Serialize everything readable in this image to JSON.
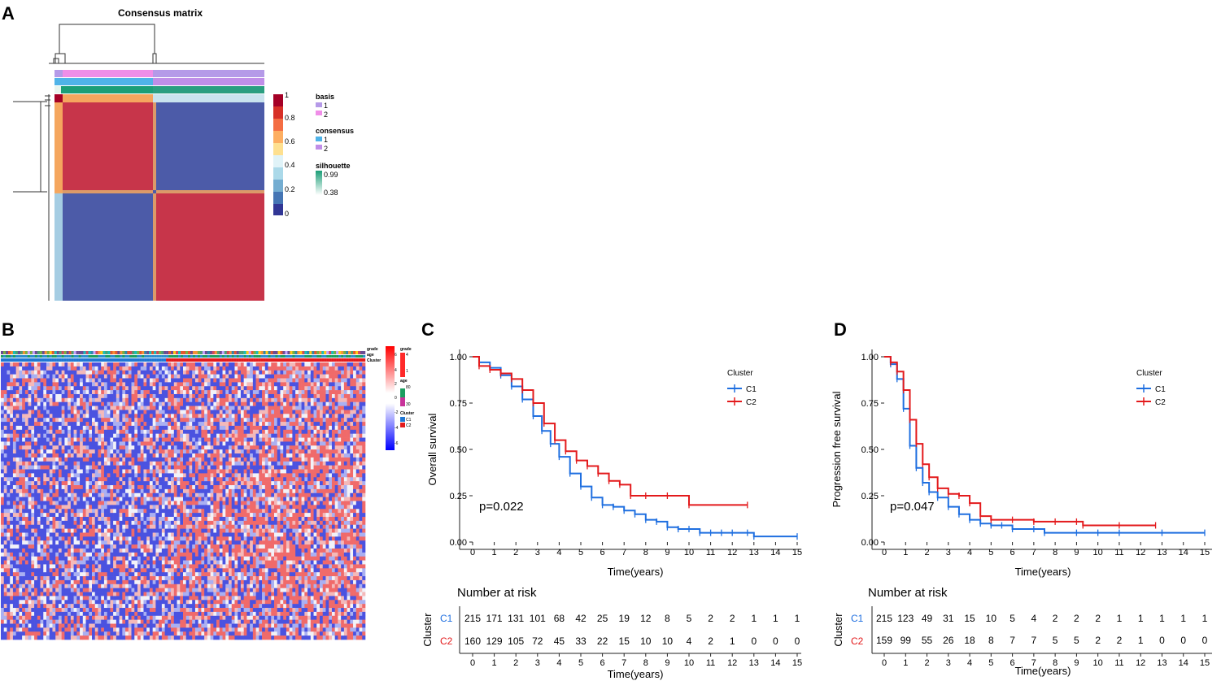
{
  "panels": {
    "A": "A",
    "B": "B",
    "C": "C",
    "D": "D"
  },
  "chart_data": [
    {
      "panel": "A",
      "type": "heatmap",
      "title": "Consensus matrix",
      "description_kind": "consensus clustering matrix with two blocks",
      "n_clusters": 2,
      "colorbar": {
        "ticks": [
          "1",
          "0.8",
          "0.6",
          "0.4",
          "0.2",
          "0"
        ],
        "colors": [
          "#a50026",
          "#d73027",
          "#f46d43",
          "#fdae61",
          "#fee090",
          "#e0f3f8",
          "#abd9e9",
          "#74add1",
          "#4575b4",
          "#313695"
        ]
      },
      "legend": {
        "basis": {
          "title": "basis",
          "items": [
            {
              "label": "1",
              "color": "#b59ae8"
            },
            {
              "label": "2",
              "color": "#f08ee8"
            }
          ]
        },
        "consensus": {
          "title": "consensus",
          "items": [
            {
              "label": "1",
              "color": "#4fb3e8"
            },
            {
              "label": "2",
              "color": "#c08ee8"
            }
          ]
        },
        "silhouette": {
          "title": "silhouette",
          "max_label": "0.99",
          "min_label": "0.38",
          "max_color": "#1b9e77",
          "min_color": "#ffffff"
        }
      },
      "block_colors": {
        "high": "#c7354a",
        "low": "#4c5ba8"
      }
    },
    {
      "panel": "B",
      "type": "heatmap",
      "description_kind": "gene expression heatmap grouped by cluster",
      "annotation_rows": [
        "grade",
        "age",
        "Cluster"
      ],
      "colorbar": {
        "ticks": [
          "6",
          "4",
          "2",
          "0",
          "-2",
          "-4",
          "-6"
        ],
        "high": "#ff0000",
        "mid": "#ffffff",
        "low": "#0000ff"
      },
      "legend": {
        "grade": {
          "title": "grade",
          "items": [
            "4",
            "1"
          ]
        },
        "age": {
          "title": "age",
          "items": [
            "80",
            "30"
          ]
        },
        "Cluster": {
          "title": "Cluster",
          "items": [
            {
              "label": "C1",
              "color": "#1f77d4"
            },
            {
              "label": "C2",
              "color": "#e31a1c"
            }
          ]
        }
      }
    },
    {
      "panel": "C",
      "type": "line",
      "kind": "kaplan-meier",
      "xlabel": "Time(years)",
      "ylabel": "Overall survival",
      "xlim": [
        0,
        15
      ],
      "ylim": [
        0,
        1
      ],
      "x_ticks": [
        "0",
        "1",
        "2",
        "3",
        "4",
        "5",
        "6",
        "7",
        "8",
        "9",
        "10",
        "11",
        "12",
        "13",
        "14",
        "15"
      ],
      "y_ticks": [
        "0.00",
        "0.25",
        "0.50",
        "0.75",
        "1.00"
      ],
      "pvalue": "p=0.022",
      "legend_title": "Cluster",
      "series": [
        {
          "name": "C1",
          "color": "#1f6fe0",
          "x": [
            0,
            0.3,
            0.8,
            1.3,
            1.8,
            2.3,
            2.8,
            3.2,
            3.6,
            4.0,
            4.5,
            5.0,
            5.5,
            6.0,
            6.5,
            7.0,
            7.5,
            8.0,
            8.5,
            9.0,
            9.5,
            10.0,
            10.5,
            11.0,
            11.5,
            12.0,
            12.7,
            13.0,
            15.0
          ],
          "y": [
            1.0,
            0.97,
            0.94,
            0.9,
            0.84,
            0.77,
            0.68,
            0.6,
            0.53,
            0.46,
            0.37,
            0.3,
            0.24,
            0.2,
            0.19,
            0.17,
            0.15,
            0.12,
            0.11,
            0.08,
            0.07,
            0.07,
            0.05,
            0.05,
            0.05,
            0.05,
            0.05,
            0.03,
            0.03
          ]
        },
        {
          "name": "C2",
          "color": "#e31a1c",
          "x": [
            0,
            0.3,
            0.8,
            1.3,
            1.8,
            2.3,
            2.8,
            3.3,
            3.8,
            4.3,
            4.8,
            5.3,
            5.8,
            6.3,
            6.8,
            7.3,
            8.0,
            9.0,
            10.0,
            12.7
          ],
          "y": [
            1.0,
            0.95,
            0.93,
            0.91,
            0.88,
            0.82,
            0.75,
            0.64,
            0.55,
            0.49,
            0.44,
            0.41,
            0.37,
            0.33,
            0.31,
            0.25,
            0.25,
            0.25,
            0.2,
            0.2
          ]
        }
      ],
      "risk_table": {
        "title": "Number at risk",
        "ylabel": "Cluster",
        "xlabel": "Time(years)",
        "rows": [
          {
            "name": "C1",
            "values": [
              "215",
              "171",
              "131",
              "101",
              "68",
              "42",
              "25",
              "19",
              "12",
              "8",
              "5",
              "2",
              "2",
              "1",
              "1",
              "1"
            ]
          },
          {
            "name": "C2",
            "values": [
              "160",
              "129",
              "105",
              "72",
              "45",
              "33",
              "22",
              "15",
              "10",
              "10",
              "4",
              "2",
              "1",
              "0",
              "0",
              "0"
            ]
          }
        ]
      }
    },
    {
      "panel": "D",
      "type": "line",
      "kind": "kaplan-meier",
      "xlabel": "Time(years)",
      "ylabel": "Progression free survival",
      "xlim": [
        0,
        15
      ],
      "ylim": [
        0,
        1
      ],
      "x_ticks": [
        "0",
        "1",
        "2",
        "3",
        "4",
        "5",
        "6",
        "7",
        "8",
        "9",
        "10",
        "11",
        "12",
        "13",
        "14",
        "15"
      ],
      "y_ticks": [
        "0.00",
        "0.25",
        "0.50",
        "0.75",
        "1.00"
      ],
      "pvalue": "p=0.047",
      "legend_title": "Cluster",
      "series": [
        {
          "name": "C1",
          "color": "#1f6fe0",
          "x": [
            0,
            0.3,
            0.6,
            0.9,
            1.2,
            1.5,
            1.8,
            2.1,
            2.5,
            3.0,
            3.5,
            4.0,
            4.5,
            5.0,
            5.5,
            6.0,
            7.0,
            7.5,
            9.0,
            10.0,
            11.0,
            13.0,
            15.0
          ],
          "y": [
            1.0,
            0.96,
            0.88,
            0.72,
            0.52,
            0.4,
            0.32,
            0.27,
            0.24,
            0.19,
            0.15,
            0.12,
            0.1,
            0.09,
            0.09,
            0.07,
            0.07,
            0.05,
            0.05,
            0.05,
            0.05,
            0.05,
            0.05
          ]
        },
        {
          "name": "C2",
          "color": "#e31a1c",
          "x": [
            0,
            0.3,
            0.6,
            0.9,
            1.2,
            1.5,
            1.8,
            2.1,
            2.5,
            3.0,
            3.5,
            4.0,
            4.5,
            5.0,
            6.0,
            7.0,
            8.0,
            9.0,
            9.3,
            11.0,
            12.7
          ],
          "y": [
            1.0,
            0.97,
            0.92,
            0.82,
            0.66,
            0.53,
            0.42,
            0.35,
            0.29,
            0.26,
            0.25,
            0.21,
            0.14,
            0.12,
            0.12,
            0.11,
            0.11,
            0.11,
            0.09,
            0.09,
            0.09
          ]
        }
      ],
      "risk_table": {
        "title": "Number at risk",
        "ylabel": "Cluster",
        "xlabel": "Time(years)",
        "rows": [
          {
            "name": "C1",
            "values": [
              "215",
              "123",
              "49",
              "31",
              "15",
              "10",
              "5",
              "4",
              "2",
              "2",
              "2",
              "1",
              "1",
              "1",
              "1",
              "1"
            ]
          },
          {
            "name": "C2",
            "values": [
              "159",
              "99",
              "55",
              "26",
              "18",
              "8",
              "7",
              "7",
              "5",
              "5",
              "2",
              "2",
              "1",
              "0",
              "0",
              "0"
            ]
          }
        ]
      }
    }
  ]
}
